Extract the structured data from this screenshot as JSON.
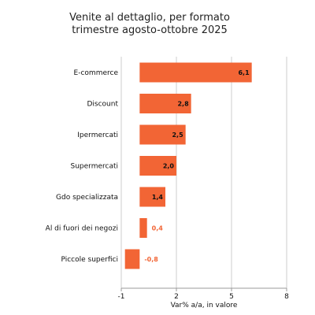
{
  "chart_data": {
    "type": "bar",
    "orientation": "horizontal",
    "title_lines": [
      "Venite al dettaglio, per formato",
      "trimestre agosto-ottobre 2025"
    ],
    "categories": [
      "E-commerce",
      "Discount",
      "Ipermercati",
      "Supermercati",
      "Gdo specializzata",
      "Al di fuori dei negozi",
      "Piccole superfici"
    ],
    "values": [
      6.1,
      2.8,
      2.5,
      2.0,
      1.4,
      0.4,
      -0.8
    ],
    "value_labels": [
      "6,1",
      "2,8",
      "2,5",
      "2,0",
      "1,4",
      "0,4",
      "-0,8"
    ],
    "xlabel": "Var% a/a, in valore",
    "ylabel": "",
    "xlim": [
      -1,
      8
    ],
    "xticks": [
      -1,
      2,
      5,
      8
    ],
    "grid": "vertical",
    "bar_color": "#f26535",
    "label_color_inside": "#111111",
    "label_color_outside": "#f26535"
  }
}
